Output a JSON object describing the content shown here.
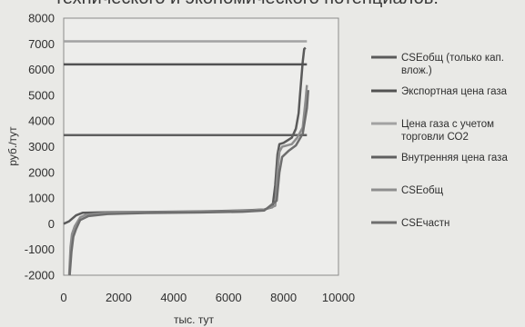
{
  "caption": "технического и экономического потенциалов:",
  "chart_data": {
    "type": "line",
    "title": "",
    "xlabel": "тыс. тут",
    "ylabel": "руб./тут",
    "xlim": [
      0,
      10000
    ],
    "ylim": [
      -2000,
      8000
    ],
    "x_ticks": [
      0,
      2000,
      4000,
      6000,
      8000,
      10000
    ],
    "y_ticks": [
      -2000,
      -1000,
      0,
      1000,
      2000,
      3000,
      4000,
      5000,
      6000,
      7000,
      8000
    ],
    "x_tick_labels": [
      "0",
      "2000",
      "4000",
      "6000",
      "8000",
      "10000"
    ],
    "y_tick_labels": [
      "-2000",
      "-1000",
      "0",
      "1000",
      "2000",
      "3000",
      "4000",
      "5000",
      "6000",
      "7000",
      "8000"
    ],
    "legend_position": "right",
    "series": [
      {
        "name": "CSEобщ (только кап. влож.)",
        "color": "#5a5a5a",
        "points": [
          [
            0,
            0
          ],
          [
            200,
            100
          ],
          [
            450,
            330
          ],
          [
            700,
            430
          ],
          [
            1500,
            450
          ],
          [
            3000,
            460
          ],
          [
            5000,
            480
          ],
          [
            6500,
            520
          ],
          [
            7300,
            560
          ],
          [
            7600,
            650
          ],
          [
            7700,
            1500
          ],
          [
            7780,
            2700
          ],
          [
            7850,
            3100
          ],
          [
            8000,
            3150
          ],
          [
            8300,
            3350
          ],
          [
            8450,
            3700
          ],
          [
            8550,
            4300
          ],
          [
            8600,
            5000
          ],
          [
            8700,
            6300
          ],
          [
            8750,
            6800
          ],
          [
            8800,
            6850
          ]
        ]
      },
      {
        "name": "Экспортная цена газа",
        "color": "#525252",
        "points": [
          [
            0,
            6200
          ],
          [
            8850,
            6200
          ]
        ]
      },
      {
        "name": "Цена газа с учетом торговли СО2",
        "color": "#a2a2a2",
        "points": [
          [
            0,
            7100
          ],
          [
            8850,
            7100
          ]
        ]
      },
      {
        "name": "Внутренняя цена газа",
        "color": "#5f5f5f",
        "points": [
          [
            0,
            3450
          ],
          [
            8850,
            3450
          ]
        ]
      },
      {
        "name": "CSEобщ",
        "color": "#8e8e8e",
        "points": [
          [
            200,
            -2000
          ],
          [
            250,
            -900
          ],
          [
            300,
            -400
          ],
          [
            400,
            -100
          ],
          [
            600,
            250
          ],
          [
            800,
            350
          ],
          [
            1500,
            420
          ],
          [
            3000,
            450
          ],
          [
            5000,
            470
          ],
          [
            6500,
            500
          ],
          [
            7300,
            550
          ],
          [
            7700,
            700
          ],
          [
            7780,
            2000
          ],
          [
            7850,
            2800
          ],
          [
            7950,
            3000
          ],
          [
            8300,
            3100
          ],
          [
            8500,
            3350
          ],
          [
            8700,
            3750
          ],
          [
            8800,
            4800
          ],
          [
            8850,
            5400
          ]
        ]
      },
      {
        "name": "CSEчастн",
        "color": "#6e6e6e",
        "points": [
          [
            220,
            -2000
          ],
          [
            280,
            -1100
          ],
          [
            350,
            -500
          ],
          [
            450,
            -200
          ],
          [
            600,
            150
          ],
          [
            900,
            300
          ],
          [
            1600,
            380
          ],
          [
            3000,
            420
          ],
          [
            5000,
            440
          ],
          [
            6500,
            470
          ],
          [
            7300,
            520
          ],
          [
            7750,
            900
          ],
          [
            7850,
            2000
          ],
          [
            7950,
            2600
          ],
          [
            8200,
            2850
          ],
          [
            8450,
            3050
          ],
          [
            8700,
            3500
          ],
          [
            8850,
            4500
          ],
          [
            8900,
            5200
          ]
        ]
      }
    ]
  }
}
